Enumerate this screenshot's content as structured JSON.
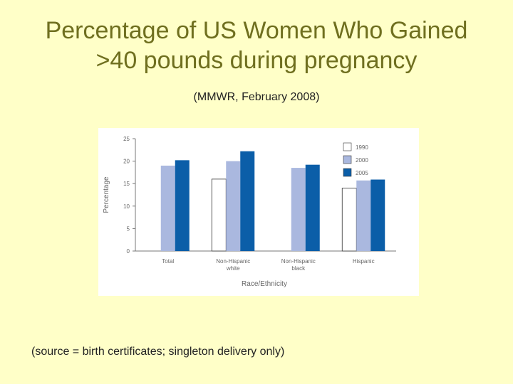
{
  "title_line1": "Percentage of US Women Who Gained",
  "title_line2": ">40 pounds during pregnancy",
  "subtitle": "(MMWR, February 2008)",
  "footnote": "(source = birth certificates; singleton delivery only)",
  "chart_data": {
    "type": "bar",
    "xlabel": "Race/Ethnicity",
    "ylabel": "Percentage",
    "ylim": [
      0,
      25
    ],
    "yticks": [
      0,
      5,
      10,
      15,
      20,
      25
    ],
    "categories": [
      [
        "Total"
      ],
      [
        "Non-Hispanic",
        "white"
      ],
      [
        "Non-Hispanic",
        "black"
      ],
      [
        "Hispanic"
      ]
    ],
    "series": [
      {
        "name": "1990",
        "color": "#ffffff",
        "values": [
          null,
          16,
          null,
          14
        ]
      },
      {
        "name": "2000",
        "color": "#aab8df",
        "values": [
          19,
          20,
          18.5,
          15.7
        ]
      },
      {
        "name": "2005",
        "color": "#0b5ea8",
        "values": [
          20.2,
          22.2,
          19.2,
          15.9
        ]
      }
    ],
    "legend_position": "top-right",
    "grid": false
  }
}
